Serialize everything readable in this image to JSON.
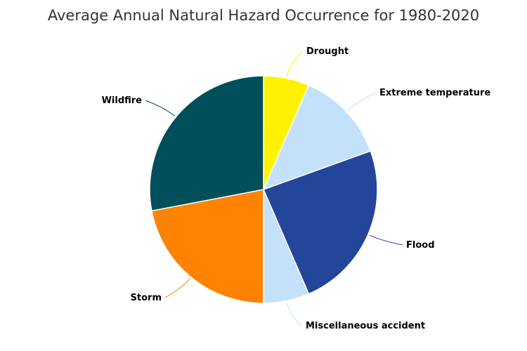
{
  "chart_data": {
    "type": "pie",
    "title": "Average Annual Natural Hazard Occurrence for 1980-2020",
    "slices": [
      {
        "name": "Drought",
        "value": 6.5,
        "color": "#fff200"
      },
      {
        "name": "Extreme temperature",
        "value": 13.0,
        "color": "#c3e1fa"
      },
      {
        "name": "Flood",
        "value": 24.0,
        "color": "#23459a"
      },
      {
        "name": "Miscellaneous accident",
        "value": 6.5,
        "color": "#c3e1fa"
      },
      {
        "name": "Storm",
        "value": 22.0,
        "color": "#ff8200"
      },
      {
        "name": "Wildfire",
        "value": 28.0,
        "color": "#004f5b"
      }
    ],
    "legend": "none",
    "data_labels": "outside with connector lines"
  }
}
